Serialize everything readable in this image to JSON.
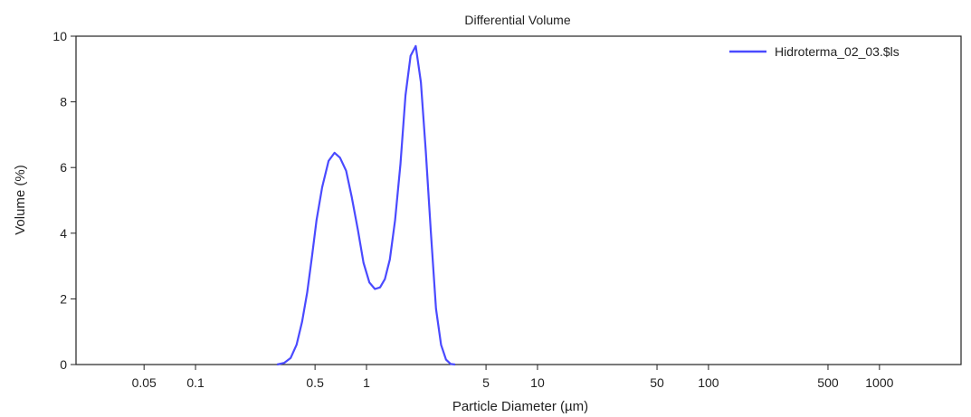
{
  "chart_data": {
    "type": "line",
    "title": "Differential Volume",
    "xlabel": "Particle Diameter (µm)",
    "ylabel": "Volume (%)",
    "x_scale": "log",
    "xlim": [
      0.02,
      3000
    ],
    "ylim": [
      0,
      10
    ],
    "x_ticks": [
      {
        "value": 0.05,
        "label": "0.05"
      },
      {
        "value": 0.1,
        "label": "0.1"
      },
      {
        "value": 0.5,
        "label": "0.5"
      },
      {
        "value": 1,
        "label": "1"
      },
      {
        "value": 5,
        "label": "5"
      },
      {
        "value": 10,
        "label": "10"
      },
      {
        "value": 50,
        "label": "50"
      },
      {
        "value": 100,
        "label": "100"
      },
      {
        "value": 500,
        "label": "500"
      },
      {
        "value": 1000,
        "label": "1000"
      }
    ],
    "y_ticks": [
      {
        "value": 0,
        "label": "0"
      },
      {
        "value": 2,
        "label": "2"
      },
      {
        "value": 4,
        "label": "4"
      },
      {
        "value": 6,
        "label": "6"
      },
      {
        "value": 8,
        "label": "8"
      },
      {
        "value": 10,
        "label": "10"
      }
    ],
    "grid": false,
    "legend_position": "top-right",
    "series": [
      {
        "name": "Hidroterma_02_03.$ls",
        "color": "#4a4aff",
        "x": [
          0.3,
          0.33,
          0.36,
          0.39,
          0.42,
          0.45,
          0.48,
          0.51,
          0.55,
          0.6,
          0.65,
          0.7,
          0.76,
          0.82,
          0.89,
          0.96,
          1.04,
          1.12,
          1.2,
          1.28,
          1.37,
          1.47,
          1.58,
          1.69,
          1.81,
          1.94,
          2.08,
          2.22,
          2.38,
          2.55,
          2.73,
          2.92,
          3.1,
          3.3
        ],
        "y": [
          0.0,
          0.05,
          0.2,
          0.6,
          1.3,
          2.2,
          3.3,
          4.4,
          5.4,
          6.2,
          6.45,
          6.3,
          5.9,
          5.1,
          4.1,
          3.1,
          2.5,
          2.3,
          2.35,
          2.6,
          3.2,
          4.4,
          6.1,
          8.2,
          9.4,
          9.7,
          8.6,
          6.5,
          4.0,
          1.7,
          0.6,
          0.15,
          0.02,
          0.0
        ]
      }
    ]
  }
}
